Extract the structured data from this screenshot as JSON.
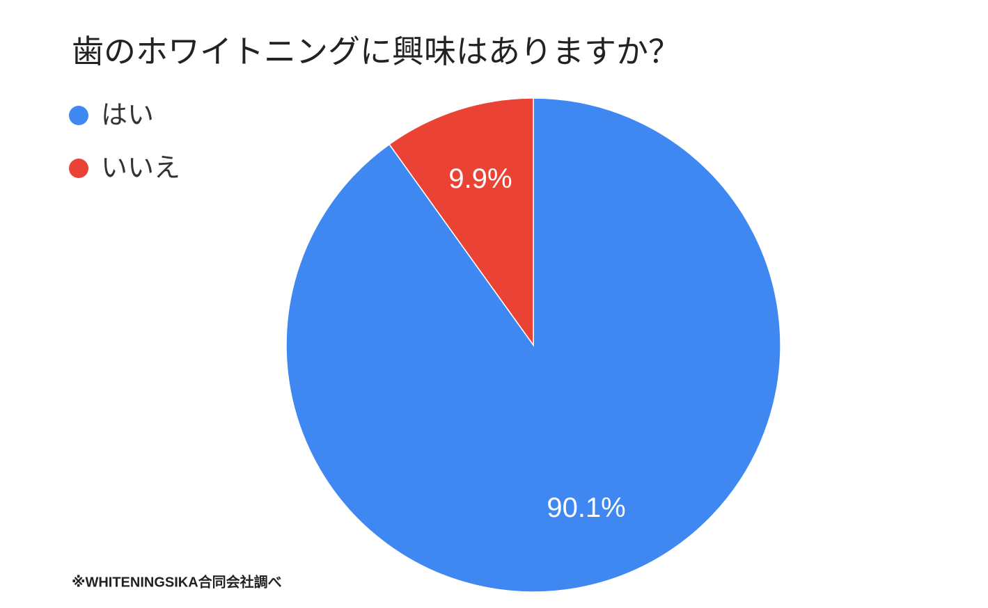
{
  "chart_data": {
    "type": "pie",
    "title": "歯のホワイトニングに興味はありますか？",
    "categories": [
      "はい",
      "いいえ"
    ],
    "values": [
      90.1,
      9.9
    ],
    "value_labels": [
      "90.1%",
      "9.9%"
    ],
    "colors": [
      "#3f88f2",
      "#ea4235"
    ],
    "note": "※WHITENINGSIKA合同会社調べ"
  }
}
